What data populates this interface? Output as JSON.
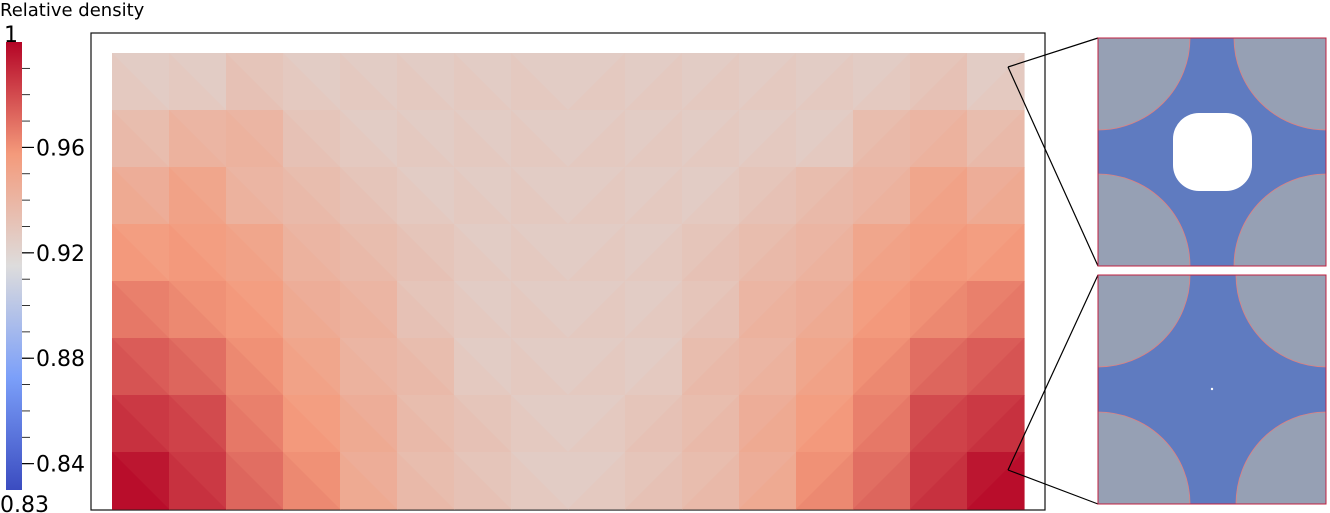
{
  "colorbar": {
    "title": "Relative density",
    "max_label": "1",
    "min_label": "0.83",
    "min": 0.83,
    "max": 1.0,
    "ticks": [
      {
        "value": 0.96,
        "label": "0.96"
      },
      {
        "value": 0.92,
        "label": "0.92"
      },
      {
        "value": 0.88,
        "label": "0.88"
      },
      {
        "value": 0.84,
        "label": "0.84"
      }
    ],
    "colormap": "cool-to-warm",
    "low_color": "#3b4cc0",
    "mid_color": "#dddcdc",
    "high_color": "#b40426"
  },
  "field": {
    "description_rows_top_to_bottom": 8,
    "cols": 16,
    "values": [
      [
        0.925,
        0.925,
        0.93,
        0.925,
        0.925,
        0.925,
        0.925,
        0.925,
        0.925,
        0.925,
        0.925,
        0.925,
        0.925,
        0.925,
        0.93,
        0.925
      ],
      [
        0.935,
        0.94,
        0.94,
        0.93,
        0.925,
        0.925,
        0.925,
        0.925,
        0.925,
        0.925,
        0.925,
        0.925,
        0.925,
        0.935,
        0.94,
        0.935
      ],
      [
        0.945,
        0.95,
        0.94,
        0.935,
        0.93,
        0.925,
        0.925,
        0.925,
        0.925,
        0.925,
        0.925,
        0.93,
        0.935,
        0.94,
        0.95,
        0.945
      ],
      [
        0.955,
        0.955,
        0.95,
        0.94,
        0.935,
        0.93,
        0.925,
        0.925,
        0.925,
        0.925,
        0.93,
        0.935,
        0.94,
        0.95,
        0.955,
        0.955
      ],
      [
        0.965,
        0.96,
        0.955,
        0.945,
        0.94,
        0.93,
        0.925,
        0.925,
        0.925,
        0.925,
        0.93,
        0.94,
        0.945,
        0.955,
        0.96,
        0.965
      ],
      [
        0.975,
        0.97,
        0.96,
        0.95,
        0.94,
        0.935,
        0.925,
        0.925,
        0.925,
        0.925,
        0.935,
        0.94,
        0.95,
        0.96,
        0.97,
        0.975
      ],
      [
        0.985,
        0.98,
        0.965,
        0.955,
        0.945,
        0.935,
        0.93,
        0.925,
        0.925,
        0.93,
        0.935,
        0.945,
        0.955,
        0.965,
        0.98,
        0.985
      ],
      [
        0.995,
        0.985,
        0.97,
        0.96,
        0.945,
        0.935,
        0.93,
        0.925,
        0.925,
        0.93,
        0.935,
        0.945,
        0.96,
        0.97,
        0.985,
        0.995
      ]
    ]
  },
  "unit_cells": [
    {
      "name": "top",
      "pore": true
    },
    {
      "name": "bottom",
      "pore": false
    }
  ]
}
